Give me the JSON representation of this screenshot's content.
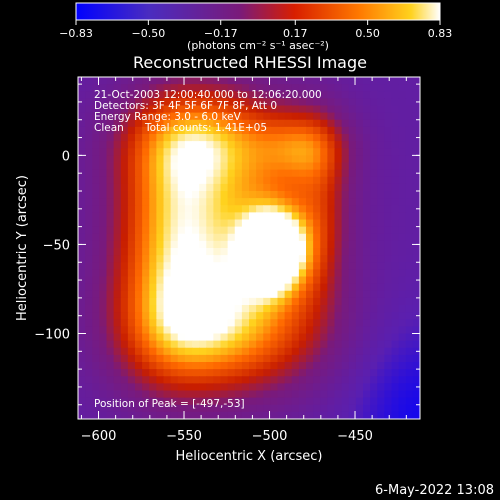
{
  "chart_data": {
    "type": "heatmap",
    "title": "Reconstructed RHESSI Image",
    "xlabel": "Heliocentric X (arcsec)",
    "ylabel": "Heliocentric Y (arcsec)",
    "xlim": [
      -612,
      -412
    ],
    "ylim": [
      -148,
      44
    ],
    "x_ticks": [
      -600,
      -550,
      -500,
      -450
    ],
    "y_ticks": [
      -100,
      -50,
      0
    ],
    "colorbar": {
      "ticks": [
        -0.83,
        -0.5,
        -0.17,
        0.17,
        0.5,
        0.83
      ],
      "range": [
        -0.83,
        0.83
      ],
      "unit_label": "(photons cm⁻² s⁻¹ asec⁻²)",
      "colors": [
        "#0000ff",
        "#5a1fb0",
        "#7a1a7a",
        "#c81e00",
        "#ff6a00",
        "#ffd21e",
        "#ffffff"
      ]
    },
    "annotations": {
      "time_range": "21-Oct-2003 12:00:40.000 to 12:06:20.000",
      "detectors": "Detectors: 3F 4F 5F 6F 7F 8F, Att 0",
      "energy_range": "Energy Range: 3.0 - 6.0 keV",
      "method": "Clean",
      "total_counts": "Total counts: 1.41E+05",
      "peak_position": "Position of Peak = [-497,-53]"
    },
    "peak": {
      "x": -497,
      "y": -53
    },
    "components": [
      {
        "x": -497,
        "y": -53,
        "sx": 13,
        "sy": 16,
        "amp": 0.58
      },
      {
        "x": -525,
        "y": -40,
        "sx": 38,
        "sy": 45,
        "amp": 0.38
      },
      {
        "x": -560,
        "y": -30,
        "sx": 22,
        "sy": 40,
        "amp": 0.22
      },
      {
        "x": -540,
        "y": 10,
        "sx": 32,
        "sy": 20,
        "amp": 0.26
      },
      {
        "x": -520,
        "y": -100,
        "sx": 40,
        "sy": 25,
        "amp": 0.3
      },
      {
        "x": -480,
        "y": 5,
        "sx": 18,
        "sy": 14,
        "amp": 0.22
      },
      {
        "x": -470,
        "y": -30,
        "sx": 12,
        "sy": 35,
        "amp": 0.16
      },
      {
        "x": -560,
        "y": -95,
        "sx": 25,
        "sy": 30,
        "amp": 0.2
      }
    ],
    "background_level": -0.4
  },
  "footer": {
    "date": "6-May-2022 13:08"
  }
}
